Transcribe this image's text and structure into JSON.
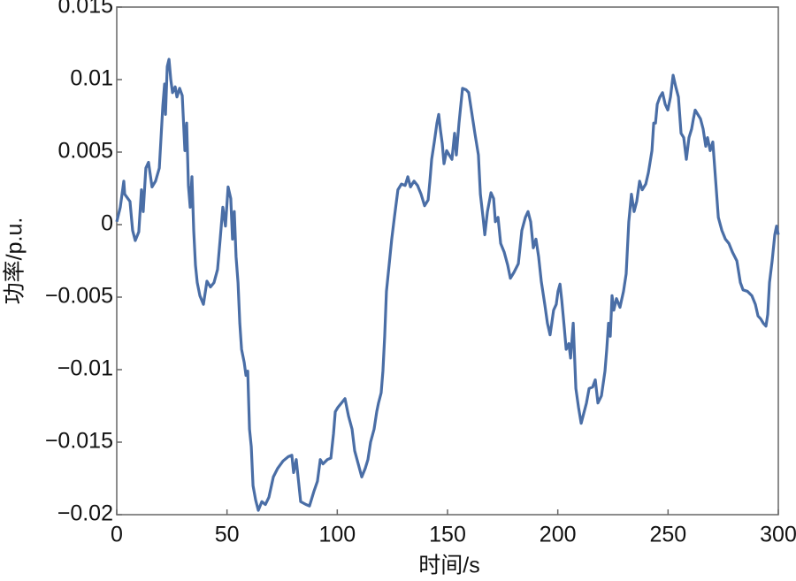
{
  "chart_data": {
    "type": "line",
    "xlabel": "时间/s",
    "ylabel": "功率/p.u.",
    "xlim": [
      0,
      300
    ],
    "xticks": [
      0,
      50,
      100,
      150,
      200,
      250,
      300
    ],
    "ylim": [
      -0.02,
      0.015
    ],
    "yticks": [
      0.015,
      0.01,
      0.005,
      0,
      {
        "value": -0.005,
        "label": "−0.005"
      },
      {
        "value": -0.01,
        "label": "−0.01"
      },
      {
        "value": -0.015,
        "label": "−0.015"
      },
      {
        "value": -0.02,
        "label": "−0.02"
      }
    ],
    "grid": false,
    "series": [
      {
        "color": "#4a6ea6",
        "x": [
          0,
          1.6,
          3.2,
          3.6,
          6.0,
          7.2,
          8.4,
          10.0,
          11.2,
          12.0,
          13.2,
          14.4,
          16.0,
          17.6,
          19.3,
          20.9,
          21.7,
          22.1,
          22.9,
          23.7,
          24.5,
          25.3,
          26.5,
          27.3,
          28.5,
          29.7,
          30.9,
          31.7,
          32.5,
          33.3,
          34.1,
          34.9,
          35.7,
          36.5,
          37.7,
          39.3,
          40.9,
          42.5,
          44.1,
          45.7,
          46.9,
          48.1,
          49.3,
          50.5,
          51.7,
          52.5,
          53.3,
          54.1,
          55.0,
          55.8,
          56.6,
          57.8,
          58.6,
          59.4,
          60.2,
          61.0,
          61.8,
          63.0,
          64.2,
          65.8,
          67.4,
          69.0,
          71.0,
          73.0,
          75.4,
          77.8,
          79.4,
          80.2,
          81.4,
          83.4,
          85.8,
          87.4,
          89.4,
          91.0,
          92.3,
          93.5,
          95.5,
          97.1,
          98.3,
          99.1,
          100.3,
          101.9,
          103.5,
          105.1,
          106.7,
          107.9,
          109.5,
          111.1,
          112.7,
          113.9,
          115.1,
          116.7,
          117.9,
          118.7,
          119.9,
          120.7,
          121.5,
          122.3,
          123.5,
          124.7,
          125.9,
          127.5,
          129.1,
          130.8,
          132.0,
          133.2,
          134.8,
          136.4,
          138.0,
          139.6,
          141.2,
          142.0,
          142.8,
          144.0,
          145.2,
          146.0,
          146.8,
          147.6,
          148.4,
          149.6,
          150.8,
          152.0,
          153.2,
          154.0,
          155.2,
          156.8,
          158.4,
          159.6,
          160.8,
          162.4,
          164.0,
          164.9,
          166.1,
          166.9,
          168.1,
          169.7,
          170.9,
          171.7,
          172.9,
          174.1,
          175.7,
          177.3,
          178.5,
          180.1,
          182.1,
          183.7,
          185.3,
          186.5,
          187.7,
          188.9,
          190.1,
          191.3,
          192.5,
          194.1,
          195.3,
          196.5,
          198.1,
          199.3,
          200.1,
          201.0,
          201.8,
          203.0,
          203.8,
          205.0,
          205.8,
          207.0,
          208.2,
          209.4,
          210.6,
          211.8,
          213.0,
          214.2,
          215.8,
          217.0,
          218.2,
          219.8,
          221.4,
          222.2,
          223.0,
          223.8,
          224.6,
          225.4,
          226.6,
          228.2,
          229.8,
          231.0,
          232.2,
          233.4,
          234.6,
          235.8,
          237.1,
          238.3,
          239.9,
          241.1,
          242.7,
          243.5,
          244.3,
          245.1,
          246.3,
          247.5,
          248.7,
          249.9,
          251.1,
          252.3,
          253.5,
          254.7,
          255.9,
          257.1,
          258.3,
          259.5,
          260.7,
          261.5,
          262.3,
          263.5,
          264.7,
          265.9,
          267.1,
          267.9,
          269.1,
          270.3,
          271.6,
          272.8,
          274.4,
          276.0,
          277.6,
          279.2,
          281.2,
          282.8,
          284.0,
          286.0,
          288.0,
          289.6,
          290.8,
          292.0,
          293.2,
          294.4,
          295.2,
          296.0,
          297.2,
          298.4,
          299.2,
          300.0
        ],
        "values": [
          0.0002,
          0.0012,
          0.003,
          0.0021,
          0.0016,
          -0.0004,
          -0.0011,
          -0.0005,
          0.0024,
          0.0009,
          0.0039,
          0.0043,
          0.0026,
          0.003,
          0.0039,
          0.0082,
          0.0097,
          0.0076,
          0.0109,
          0.0114,
          0.01,
          0.0091,
          0.0095,
          0.0088,
          0.0094,
          0.0089,
          0.0051,
          0.007,
          0.0027,
          0.0012,
          0.0033,
          -0.0004,
          -0.0028,
          -0.004,
          -0.0049,
          -0.0055,
          -0.0039,
          -0.0043,
          -0.004,
          -0.0031,
          -0.001,
          0.0012,
          -0.0001,
          0.0026,
          0.0018,
          -0.001,
          0.0009,
          -0.0022,
          -0.004,
          -0.0068,
          -0.0086,
          -0.0095,
          -0.0104,
          -0.0101,
          -0.0141,
          -0.0153,
          -0.018,
          -0.019,
          -0.0197,
          -0.0191,
          -0.0193,
          -0.0188,
          -0.0174,
          -0.0168,
          -0.0163,
          -0.016,
          -0.0159,
          -0.0171,
          -0.0162,
          -0.0191,
          -0.0193,
          -0.0194,
          -0.0184,
          -0.0177,
          -0.0162,
          -0.0165,
          -0.0162,
          -0.0161,
          -0.0144,
          -0.0129,
          -0.0126,
          -0.0123,
          -0.012,
          -0.0132,
          -0.0141,
          -0.0156,
          -0.0165,
          -0.0174,
          -0.0168,
          -0.0162,
          -0.015,
          -0.0141,
          -0.0129,
          -0.0123,
          -0.0116,
          -0.0101,
          -0.0077,
          -0.0046,
          -0.0028,
          -0.001,
          0.0005,
          0.0024,
          0.0028,
          0.0027,
          0.0033,
          0.0026,
          0.003,
          0.0027,
          0.0021,
          0.0013,
          0.0017,
          0.003,
          0.0045,
          0.0057,
          0.007,
          0.0076,
          0.0065,
          0.0056,
          0.0042,
          0.0051,
          0.0048,
          0.0045,
          0.0063,
          0.0048,
          0.007,
          0.0094,
          0.0093,
          0.0091,
          0.0079,
          0.0063,
          0.0048,
          0.0021,
          0.0005,
          -0.0007,
          0.0009,
          0.0022,
          0.0018,
          0.0002,
          0.0005,
          -0.0013,
          -0.0019,
          -0.0028,
          -0.0037,
          -0.0033,
          -0.0027,
          -0.0004,
          0.0005,
          0.0009,
          0.0002,
          -0.0016,
          -0.001,
          -0.0022,
          -0.0039,
          -0.0055,
          -0.0068,
          -0.0076,
          -0.0059,
          -0.0055,
          -0.0046,
          -0.0041,
          -0.0052,
          -0.0072,
          -0.0086,
          -0.0082,
          -0.0092,
          -0.0068,
          -0.0113,
          -0.0126,
          -0.0137,
          -0.013,
          -0.0123,
          -0.0113,
          -0.0112,
          -0.0107,
          -0.0123,
          -0.0118,
          -0.0101,
          -0.0086,
          -0.0068,
          -0.0077,
          -0.0049,
          -0.0059,
          -0.0051,
          -0.0057,
          -0.0046,
          -0.0034,
          0.0002,
          0.0021,
          0.0009,
          0.0016,
          0.003,
          0.0024,
          0.0028,
          0.0036,
          0.0051,
          0.007,
          0.007,
          0.0083,
          0.0088,
          0.0091,
          0.0083,
          0.0079,
          0.0088,
          0.0103,
          0.0095,
          0.0088,
          0.0063,
          0.006,
          0.0045,
          0.006,
          0.0066,
          0.0073,
          0.0079,
          0.0076,
          0.0073,
          0.0066,
          0.0054,
          0.006,
          0.0051,
          0.0057,
          0.003,
          0.0005,
          -0.0004,
          -0.001,
          -0.0013,
          -0.0019,
          -0.0025,
          -0.004,
          -0.0045,
          -0.0046,
          -0.0049,
          -0.0055,
          -0.0063,
          -0.0065,
          -0.0068,
          -0.007,
          -0.0062,
          -0.004,
          -0.0025,
          -0.0007,
          -0.0001,
          -0.0007
        ]
      }
    ]
  }
}
